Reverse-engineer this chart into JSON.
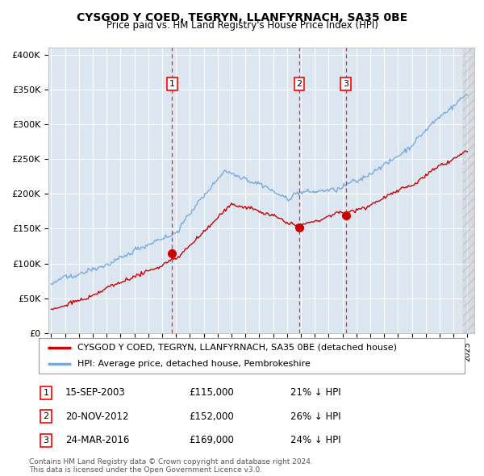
{
  "title": "CYSGOD Y COED, TEGRYN, LLANFYRNACH, SA35 0BE",
  "subtitle": "Price paid vs. HM Land Registry's House Price Index (HPI)",
  "plot_bg_color": "#dce6f1",
  "yticks": [
    0,
    50000,
    100000,
    150000,
    200000,
    250000,
    300000,
    350000,
    400000
  ],
  "ytick_labels": [
    "£0",
    "£50K",
    "£100K",
    "£150K",
    "£200K",
    "£250K",
    "£300K",
    "£350K",
    "£400K"
  ],
  "legend_line1": "CYSGOD Y COED, TEGRYN, LLANFYRNACH, SA35 0BE (detached house)",
  "legend_line2": "HPI: Average price, detached house, Pembrokeshire",
  "sale_labels": [
    "1",
    "2",
    "3"
  ],
  "sale_dates_label": [
    "15-SEP-2003",
    "20-NOV-2012",
    "24-MAR-2016"
  ],
  "sale_prices_label": [
    "£115,000",
    "£152,000",
    "£169,000"
  ],
  "sale_pct_label": [
    "21% ↓ HPI",
    "26% ↓ HPI",
    "24% ↓ HPI"
  ],
  "sale_years": [
    2003.72,
    2012.89,
    2016.23
  ],
  "sale_prices": [
    115000,
    152000,
    169000
  ],
  "footer": "Contains HM Land Registry data © Crown copyright and database right 2024.\nThis data is licensed under the Open Government Licence v3.0.",
  "red_color": "#cc0000",
  "hpi_color": "#7aaadd"
}
